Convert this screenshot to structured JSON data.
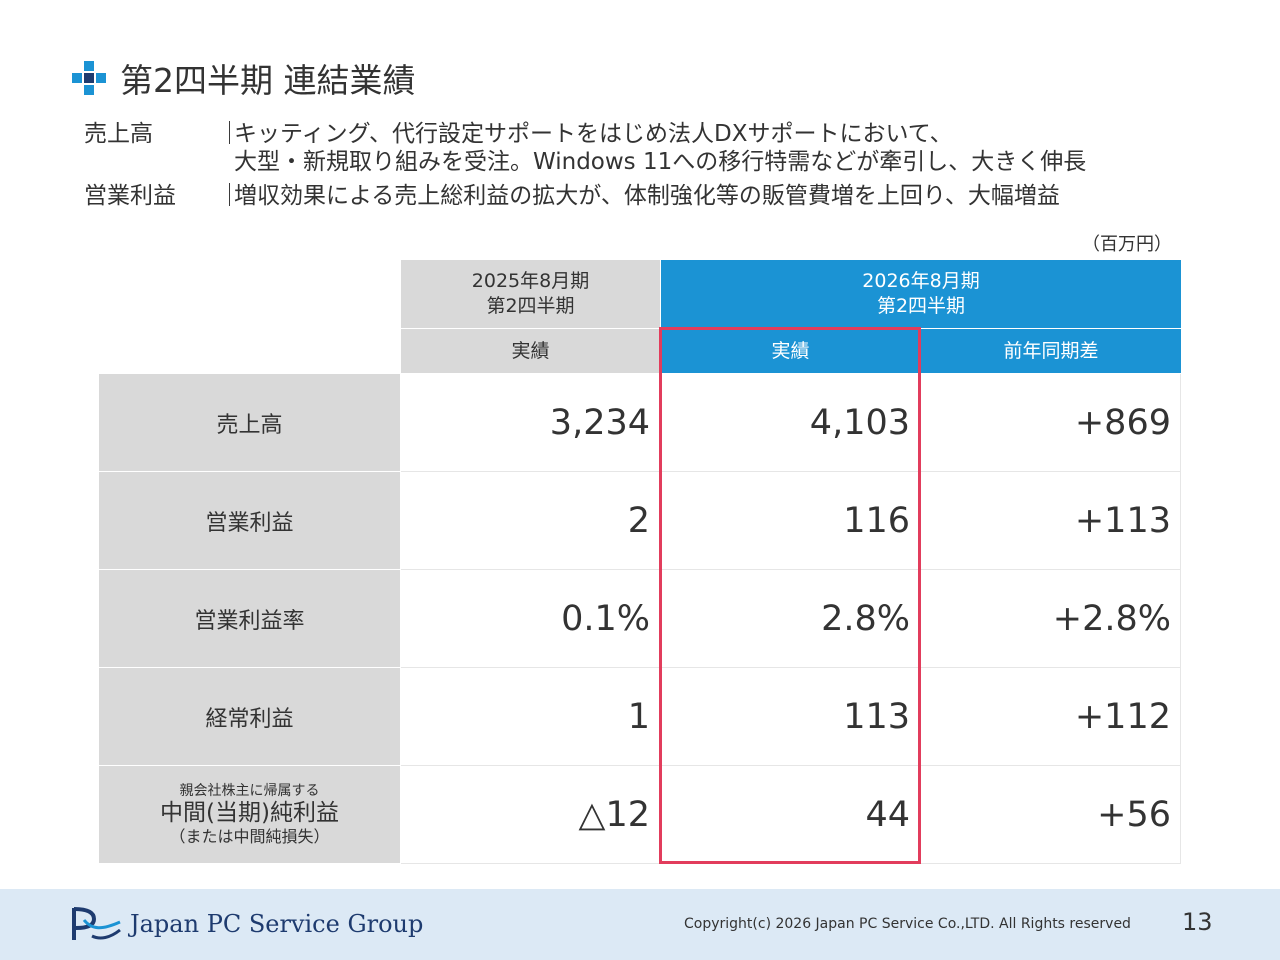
{
  "slide": {
    "title": "第2四半期 連結業績",
    "summary": [
      {
        "label": "売上高",
        "sep": "｜",
        "lines": [
          "キッティング、代行設定サポートをはじめ法人DXサポートにおいて、",
          "大型・新規取り組みを受注。Windows 11への移行特需などが牽引し、大きく伸長"
        ]
      },
      {
        "label": "営業利益",
        "sep": "｜",
        "lines": [
          "増収効果による売上総利益の拡大が、体制強化等の販管費増を上回り、大幅増益"
        ]
      }
    ],
    "unit": "（百万円）"
  },
  "table": {
    "header": {
      "prev_period": [
        "2025年8月期",
        "第2四半期"
      ],
      "curr_period": [
        "2026年8月期",
        "第2四半期"
      ],
      "prev_actual": "実績",
      "curr_actual": "実績",
      "yoy": "前年同期差"
    },
    "rows": [
      {
        "label": "売上高",
        "prev": "3,234",
        "curr": "4,103",
        "diff": "+869"
      },
      {
        "label": "営業利益",
        "prev": "2",
        "curr": "116",
        "diff": "+113"
      },
      {
        "label": "営業利益率",
        "prev": "0.1%",
        "curr": "2.8%",
        "diff": "+2.8%"
      },
      {
        "label": "経常利益",
        "prev": "1",
        "curr": "113",
        "diff": "+112"
      },
      {
        "label_top": "親会社株主に帰属する",
        "label": "中間(当期)純利益",
        "label_bottom": "（または中間純損失）",
        "prev": "△12",
        "curr": "44",
        "diff": "+56"
      }
    ]
  },
  "footer": {
    "logo_text": "Japan PC Service Group",
    "copyright": "Copyright(c) 2026 Japan PC Service Co.,LTD. All Rights reserved",
    "page": "13"
  },
  "colors": {
    "accent_blue": "#1b93d4",
    "header_gray": "#d9d9d9",
    "highlight": "#e23c5c",
    "footer_bg": "#dce9f5",
    "logo_navy": "#1e3b6f"
  }
}
